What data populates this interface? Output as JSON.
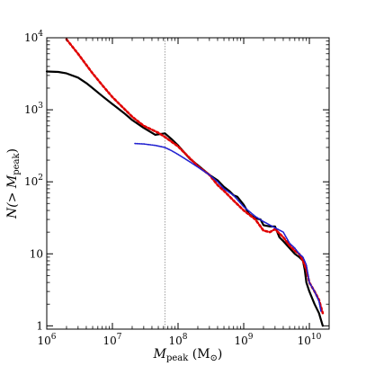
{
  "chart_data": {
    "type": "line",
    "xscale": "log",
    "yscale": "log",
    "xlim": [
      1000000,
      20000000000
    ],
    "ylim": [
      0.9,
      10000
    ],
    "grid": false,
    "legend": "none",
    "xlabel": {
      "main": "M",
      "sub": "peak",
      "unit": " (M",
      "unit_sub": "⊙",
      "close": ")"
    },
    "ylabel": {
      "main": "N(> M",
      "sub": "peak",
      "close": ")"
    },
    "x_ticks": [
      {
        "value": 1000000,
        "base": "10",
        "exp": "6"
      },
      {
        "value": 10000000,
        "base": "10",
        "exp": "7"
      },
      {
        "value": 100000000,
        "base": "10",
        "exp": "8"
      },
      {
        "value": 1000000000,
        "base": "10",
        "exp": "9"
      },
      {
        "value": 10000000000,
        "base": "10",
        "exp": "10"
      }
    ],
    "y_ticks": [
      {
        "value": 1,
        "text": "1"
      },
      {
        "value": 10,
        "text": "10"
      },
      {
        "value": 100,
        "base": "10",
        "exp": "2"
      },
      {
        "value": 1000,
        "base": "10",
        "exp": "3"
      },
      {
        "value": 10000,
        "base": "10",
        "exp": "4"
      }
    ],
    "vline": {
      "x": 63000000,
      "color": "#888888"
    },
    "series": [
      {
        "color": "#000000",
        "style": "solid",
        "x": [
          1000000,
          1500000,
          2000000,
          3000000,
          4000000,
          5000000,
          7000000,
          10000000,
          15000000,
          20000000,
          30000000,
          45000000,
          63000000,
          80000000,
          100000000,
          150000000,
          200000000,
          300000000,
          400000000,
          500000000,
          600000000,
          700000000,
          800000000,
          1000000000,
          1200000000,
          1500000000,
          1800000000,
          2000000000,
          2500000000,
          3000000000,
          3500000000,
          4000000000,
          5000000000,
          6000000000,
          7000000000,
          8000000000,
          8500000000,
          9000000000,
          10000000000,
          12000000000,
          14000000000,
          16000000000
        ],
        "y": [
          3400,
          3350,
          3200,
          2800,
          2350,
          2000,
          1550,
          1200,
          900,
          720,
          560,
          450,
          470,
          390,
          320,
          210,
          170,
          125,
          105,
          85,
          75,
          65,
          62,
          48,
          36,
          31,
          30,
          25,
          24,
          24,
          17,
          15,
          12,
          10,
          9,
          8,
          6,
          4,
          3,
          2,
          1.5,
          1
        ]
      },
      {
        "color": "#e00000",
        "style": "dotted",
        "x": [
          2000000,
          3000000,
          5000000,
          7000000,
          10000000,
          20000000,
          30000000,
          50000000,
          63000000,
          100000000,
          200000000,
          300000000,
          400000000,
          500000000,
          700000000,
          1000000000,
          1500000000,
          2000000000,
          2500000000,
          3000000000,
          4000000000,
          5000000000,
          6000000000,
          7000000000,
          8000000000,
          9000000000,
          10000000000,
          12000000000,
          14000000000,
          16000000000
        ],
        "y": [
          9500,
          6000,
          3200,
          2200,
          1500,
          800,
          600,
          480,
          420,
          310,
          165,
          125,
          90,
          75,
          55,
          40,
          30,
          21,
          20,
          22,
          17,
          13,
          11,
          10,
          8,
          6,
          4,
          3,
          2.3,
          1.5
        ]
      },
      {
        "color": "#2020d0",
        "style": "dotted",
        "x": [
          22000000,
          30000000,
          45000000,
          63000000,
          80000000,
          100000000,
          150000000,
          200000000,
          300000000,
          400000000,
          500000000,
          700000000,
          1000000000,
          1500000000,
          2000000000,
          3000000000,
          4000000000,
          5000000000,
          6000000000,
          7000000000,
          8000000000,
          9000000000,
          10000000000,
          12000000000,
          14000000000,
          15000000000
        ],
        "y": [
          340,
          335,
          320,
          300,
          270,
          240,
          190,
          160,
          125,
          100,
          80,
          65,
          45,
          33,
          28,
          23,
          20,
          14,
          12,
          10,
          9,
          7,
          4,
          3,
          2.2,
          1.6
        ]
      }
    ]
  }
}
